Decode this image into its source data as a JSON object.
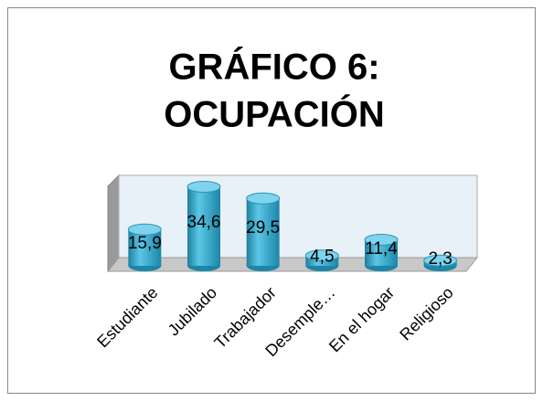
{
  "chart_data": {
    "type": "bar",
    "title": [
      "GRÁFICO 6:",
      "OCUPACIÓN"
    ],
    "categories": [
      "Estudiante",
      "Jubilado",
      "Trabajador",
      "Desemple…",
      "En el hogar",
      "Religioso"
    ],
    "values": [
      15.9,
      34.6,
      29.5,
      4.5,
      11.4,
      2.3
    ],
    "value_labels": [
      "15,9",
      "34,6",
      "29,5",
      "4,5",
      "11,4",
      "2,3"
    ],
    "color": "#35a7c9",
    "ylim": [
      0,
      40
    ]
  }
}
